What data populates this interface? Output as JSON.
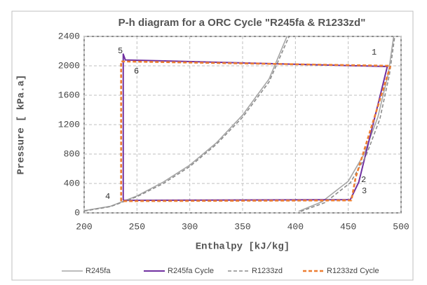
{
  "chart_data": {
    "type": "line",
    "title": "P-h diagram for a ORC Cycle \"R245fa & R1233zd\"",
    "x_label": "Enthalpy [kJ/kg]",
    "y_label": "Pressure [ kPa.a]",
    "xlim": [
      200,
      500
    ],
    "xticks": [
      200,
      250,
      300,
      350,
      400,
      450,
      500
    ],
    "ylim": [
      0,
      2400
    ],
    "yticks": [
      0,
      400,
      800,
      1200,
      1600,
      2000,
      2400
    ],
    "grid": true,
    "legend": "bottom",
    "annotations": [
      "1",
      "2",
      "3",
      "4",
      "5",
      "6"
    ],
    "series": [
      {
        "name": "R245fa",
        "color": "#a6a6a6",
        "dash": false,
        "x": [
          200,
          225,
          250,
          275,
          300,
          325,
          350,
          375,
          392,
          null,
          403,
          425,
          450,
          465,
          478,
          488,
          493
        ],
        "values": [
          30,
          90,
          230,
          420,
          650,
          950,
          1330,
          1820,
          2400,
          null,
          20,
          150,
          430,
          800,
          1300,
          1900,
          2400
        ]
      },
      {
        "name": "R245fa Cycle",
        "color": "#7030a0",
        "dash": false,
        "x": [
          237,
          237,
          239,
          487,
          460,
          452,
          237
        ],
        "values": [
          170,
          2160,
          2080,
          1990,
          420,
          180,
          170
        ]
      },
      {
        "name": "R1233zd",
        "color": "#8c8c8c",
        "dash": true,
        "x": [
          200,
          225,
          250,
          275,
          300,
          325,
          350,
          375,
          394,
          null,
          405,
          428,
          452,
          467,
          480,
          489,
          494
        ],
        "values": [
          25,
          85,
          220,
          400,
          630,
          930,
          1300,
          1780,
          2400,
          null,
          20,
          140,
          410,
          780,
          1280,
          1880,
          2400
        ]
      },
      {
        "name": "R1233zd Cycle",
        "color": "#ed7d31",
        "dash": true,
        "x": [
          235,
          235,
          490,
          457,
          453,
          235
        ],
        "values": [
          160,
          2060,
          2000,
          480,
          170,
          160
        ]
      }
    ]
  }
}
